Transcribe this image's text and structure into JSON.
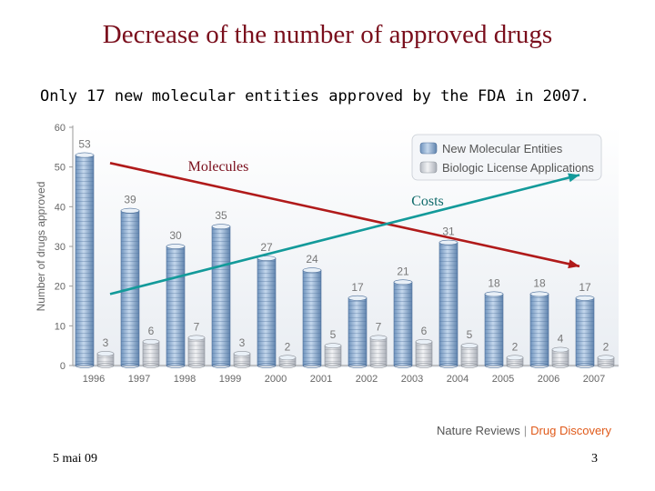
{
  "slide": {
    "title": "Decrease of the number of approved drugs",
    "subtitle": "Only 17 new molecular entities approved by the FDA in 2007.",
    "date": "5 mai 09",
    "page": "3",
    "source_brand": "Nature Reviews",
    "source_sep": "|",
    "source_journal": "Drug Discovery"
  },
  "colors": {
    "title": "#7a0e1c",
    "nme_fill": "#8fb0d3",
    "bla_fill": "#d6d9de",
    "molecules_line": "#b01a1a",
    "costs_line": "#139a9a",
    "source_accent": "#e05a1a"
  },
  "chart_data": {
    "type": "bar",
    "ylabel": "Number of drugs approved",
    "xlabel": "",
    "ylim": [
      0,
      60
    ],
    "yticks": [
      0,
      10,
      20,
      30,
      40,
      50,
      60
    ],
    "categories": [
      "1996",
      "1997",
      "1998",
      "1999",
      "2000",
      "2001",
      "2002",
      "2003",
      "2004",
      "2005",
      "2006",
      "2007"
    ],
    "series": [
      {
        "name": "New Molecular Entities",
        "values": [
          53,
          39,
          30,
          35,
          27,
          24,
          17,
          21,
          31,
          18,
          18,
          17
        ]
      },
      {
        "name": "Biologic License Applications",
        "values": [
          3,
          6,
          7,
          3,
          2,
          5,
          7,
          6,
          5,
          2,
          4,
          2
        ]
      }
    ],
    "legend_position": "top-right",
    "annotations": [
      {
        "label": "Molecules",
        "from": [
          "1996",
          51
        ],
        "to": [
          "2007",
          25
        ]
      },
      {
        "label": "Costs",
        "from": [
          "1996",
          18
        ],
        "to": [
          "2007",
          48
        ]
      }
    ]
  }
}
